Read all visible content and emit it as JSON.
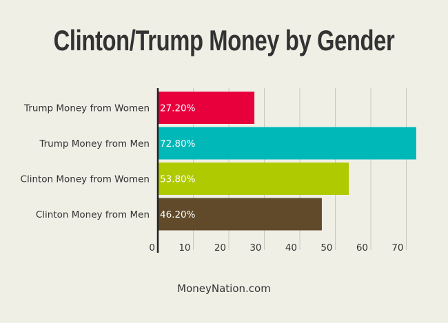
{
  "title": "Clinton/Trump Money by Gender",
  "source": "MoneyNation.com",
  "chart_data": {
    "type": "bar",
    "orientation": "horizontal",
    "title": "Clinton/Trump Money by Gender",
    "categories": [
      "Trump Money from Women",
      "Trump Money from Men",
      "Clinton Money from Women",
      "Clinton Money from Men"
    ],
    "values": [
      27.2,
      72.8,
      53.8,
      46.2
    ],
    "value_labels": [
      "27.20%",
      "72.80%",
      "53.80%",
      "46.20%"
    ],
    "colors": [
      "#e8003d",
      "#00b8b8",
      "#afca00",
      "#604a2a"
    ],
    "xticks": [
      0,
      10,
      20,
      30,
      40,
      50,
      60,
      70
    ],
    "xlim": [
      0,
      74
    ],
    "grid": true,
    "xlabel": "",
    "ylabel": ""
  }
}
